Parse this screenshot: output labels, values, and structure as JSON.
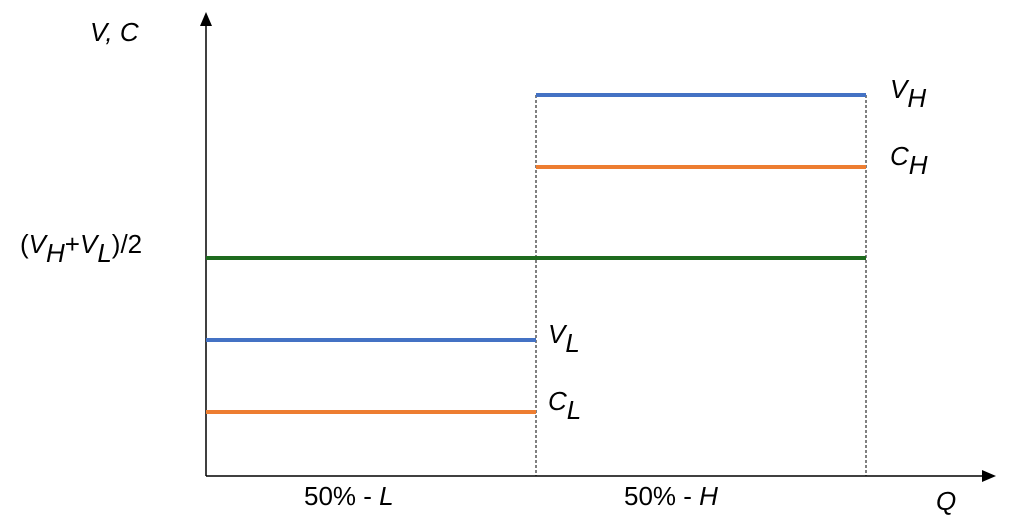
{
  "labels": {
    "y_axis": "V, C",
    "x_axis": "Q",
    "mid_level": {
      "open": "(",
      "v1": "V",
      "v1_sub": "H",
      "plus": "+",
      "v2": "V",
      "v2_sub": "L",
      "close": ")/2"
    },
    "v_high": {
      "base": "V",
      "sub": "H"
    },
    "c_high": {
      "base": "C",
      "sub": "H"
    },
    "v_low": {
      "base": "V",
      "sub": "L"
    },
    "c_low": {
      "base": "C",
      "sub": "L"
    },
    "segment_low": {
      "pct": "50% - ",
      "letter": "L"
    },
    "segment_high": {
      "pct": "50% - ",
      "letter": "H"
    }
  },
  "colors": {
    "value_line": "#4472c4",
    "cost_line": "#ed7d31",
    "average_line": "#1e6b1e",
    "axis": "#000000"
  }
}
